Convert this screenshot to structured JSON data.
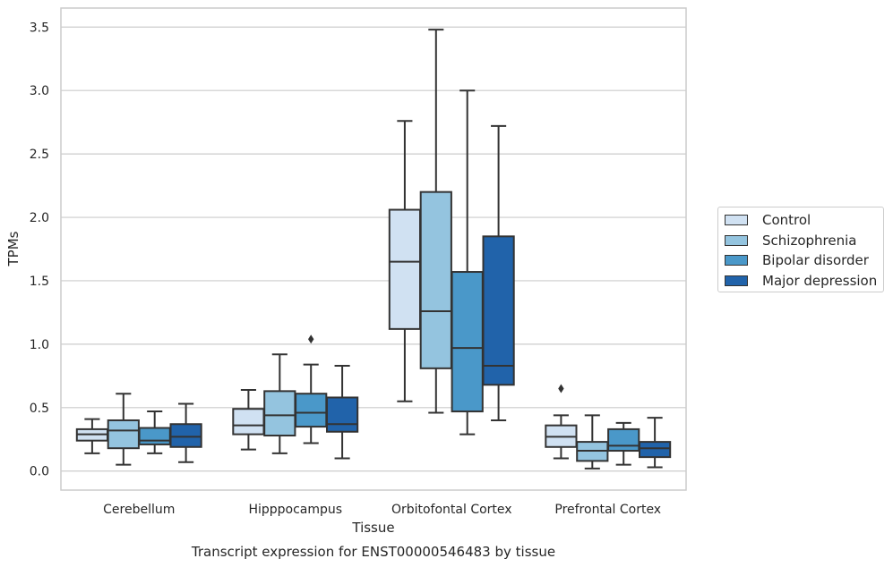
{
  "chart_data": {
    "type": "box",
    "caption": "Transcript expression for ENST00000546483 by tissue",
    "xlabel": "Tissue",
    "ylabel": "TPMs",
    "ylim": [
      -0.15,
      3.65
    ],
    "yticks": [
      "0.0",
      "0.5",
      "1.0",
      "1.5",
      "2.0",
      "2.5",
      "3.0",
      "3.5"
    ],
    "grid": true,
    "legend_position": "right",
    "categories": [
      "Cerebellum",
      "Hipppocampus",
      "Orbitofontal Cortex",
      "Prefrontal Cortex"
    ],
    "series": [
      {
        "name": "Control",
        "color": "#d0e1f2",
        "boxes": [
          {
            "whislo": 0.14,
            "q1": 0.24,
            "med": 0.29,
            "q3": 0.33,
            "whishi": 0.41,
            "fliers": []
          },
          {
            "whislo": 0.17,
            "q1": 0.29,
            "med": 0.36,
            "q3": 0.49,
            "whishi": 0.64,
            "fliers": []
          },
          {
            "whislo": 0.55,
            "q1": 1.12,
            "med": 1.65,
            "q3": 2.06,
            "whishi": 2.76,
            "fliers": []
          },
          {
            "whislo": 0.1,
            "q1": 0.19,
            "med": 0.27,
            "q3": 0.36,
            "whishi": 0.44,
            "fliers": [
              0.65
            ]
          }
        ]
      },
      {
        "name": "Schizophrenia",
        "color": "#94c4df",
        "boxes": [
          {
            "whislo": 0.05,
            "q1": 0.18,
            "med": 0.32,
            "q3": 0.4,
            "whishi": 0.61,
            "fliers": []
          },
          {
            "whislo": 0.14,
            "q1": 0.28,
            "med": 0.44,
            "q3": 0.63,
            "whishi": 0.92,
            "fliers": []
          },
          {
            "whislo": 0.46,
            "q1": 0.81,
            "med": 1.26,
            "q3": 2.2,
            "whishi": 3.48,
            "fliers": []
          },
          {
            "whislo": 0.02,
            "q1": 0.08,
            "med": 0.16,
            "q3": 0.23,
            "whishi": 0.44,
            "fliers": []
          }
        ]
      },
      {
        "name": "Bipolar disorder",
        "color": "#4a98c9",
        "boxes": [
          {
            "whislo": 0.14,
            "q1": 0.21,
            "med": 0.24,
            "q3": 0.34,
            "whishi": 0.47,
            "fliers": []
          },
          {
            "whislo": 0.22,
            "q1": 0.35,
            "med": 0.46,
            "q3": 0.61,
            "whishi": 0.84,
            "fliers": [
              1.04
            ]
          },
          {
            "whislo": 0.29,
            "q1": 0.47,
            "med": 0.97,
            "q3": 1.57,
            "whishi": 3.0,
            "fliers": []
          },
          {
            "whislo": 0.05,
            "q1": 0.16,
            "med": 0.2,
            "q3": 0.33,
            "whishi": 0.38,
            "fliers": []
          }
        ]
      },
      {
        "name": "Major depression",
        "color": "#2163aa",
        "boxes": [
          {
            "whislo": 0.07,
            "q1": 0.19,
            "med": 0.27,
            "q3": 0.37,
            "whishi": 0.53,
            "fliers": []
          },
          {
            "whislo": 0.1,
            "q1": 0.31,
            "med": 0.37,
            "q3": 0.58,
            "whishi": 0.83,
            "fliers": []
          },
          {
            "whislo": 0.4,
            "q1": 0.68,
            "med": 0.83,
            "q3": 1.85,
            "whishi": 2.72,
            "fliers": []
          },
          {
            "whislo": 0.03,
            "q1": 0.11,
            "med": 0.18,
            "q3": 0.23,
            "whishi": 0.42,
            "fliers": []
          }
        ]
      }
    ]
  }
}
